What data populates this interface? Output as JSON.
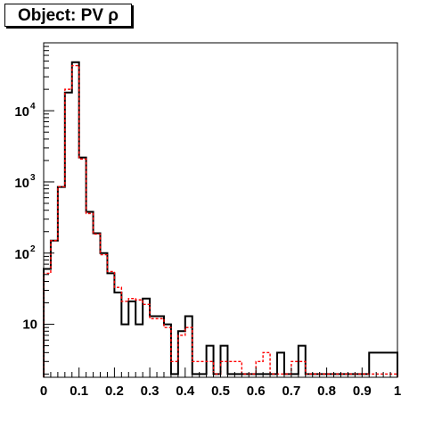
{
  "chart_data": {
    "type": "histogram",
    "title": "Object: PV ρ",
    "xlabel": "",
    "ylabel": "",
    "xlim": [
      0,
      1
    ],
    "ylim": [
      1.8,
      90000
    ],
    "y_scale": "log",
    "grid": false,
    "legend": "none",
    "x_tick_labels": [
      "0",
      "0.1",
      "0.2",
      "0.3",
      "0.4",
      "0.5",
      "0.6",
      "0.7",
      "0.8",
      "0.9",
      "1"
    ],
    "y_tick_labels": [
      {
        "value": 10,
        "base": "10",
        "exp": ""
      },
      {
        "value": 100,
        "base": "10",
        "exp": "2"
      },
      {
        "value": 1000,
        "base": "10",
        "exp": "3"
      },
      {
        "value": 10000,
        "base": "10",
        "exp": "4"
      }
    ],
    "bin_edges_start": 0,
    "bin_width": 0.02,
    "series": [
      {
        "color": "#000000",
        "style": "solid",
        "values": [
          60,
          150,
          850,
          18000,
          48000,
          2200,
          380,
          190,
          100,
          52,
          28,
          10,
          21,
          10,
          23,
          13,
          13,
          10,
          2,
          8,
          13,
          2,
          2,
          5,
          2,
          5,
          2,
          2,
          2,
          2,
          2,
          2,
          2,
          4,
          2,
          2,
          5,
          2,
          2,
          2,
          2,
          2,
          2,
          2,
          2,
          2,
          4,
          4,
          4,
          4
        ]
      },
      {
        "color": "#ff0000",
        "style": "dashed",
        "values": [
          52,
          150,
          860,
          20000,
          43000,
          2100,
          360,
          185,
          95,
          55,
          33,
          21,
          23,
          22,
          19,
          12,
          12,
          9,
          3,
          7,
          9,
          3,
          3,
          3,
          2,
          3,
          3,
          3,
          2,
          2,
          3,
          4,
          2,
          2,
          2,
          3,
          3,
          2,
          2,
          2,
          2,
          2,
          2,
          2,
          2,
          2,
          2,
          2,
          2,
          2
        ]
      }
    ]
  }
}
